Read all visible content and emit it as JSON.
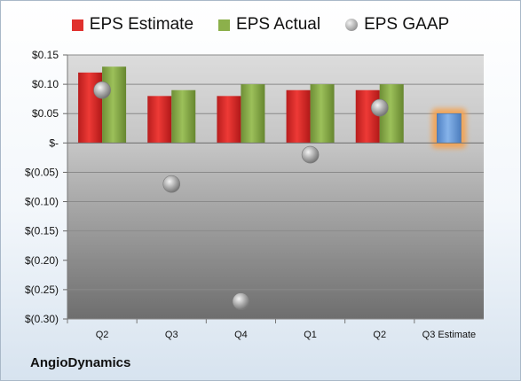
{
  "company": "AngioDynamics",
  "legend": [
    {
      "label": "EPS Estimate",
      "color": "#e0312e",
      "shape": "square"
    },
    {
      "label": "EPS Actual",
      "color": "#8cb04b",
      "shape": "square"
    },
    {
      "label": "EPS GAAP",
      "color": "#a6a6a6",
      "shape": "circle"
    }
  ],
  "chart_data": {
    "type": "bar",
    "categories": [
      "Q2",
      "Q3",
      "Q4",
      "Q1",
      "Q2",
      "Q3 Estimate"
    ],
    "series": [
      {
        "name": "EPS Estimate",
        "values": [
          0.12,
          0.08,
          0.08,
          0.09,
          0.09,
          null
        ]
      },
      {
        "name": "EPS Actual",
        "values": [
          0.13,
          0.09,
          0.1,
          0.1,
          0.1,
          null
        ]
      },
      {
        "name": "EPS GAAP",
        "values": [
          0.09,
          -0.07,
          -0.27,
          -0.02,
          0.06,
          null
        ]
      }
    ],
    "next_estimate": {
      "category": "Q3 Estimate",
      "value": 0.05,
      "color": "#6f9fdc",
      "glow": "#f7a04a"
    },
    "ylim": [
      -0.3,
      0.15
    ],
    "yticks": [
      0.15,
      0.1,
      0.05,
      0,
      -0.05,
      -0.1,
      -0.15,
      -0.2,
      -0.25,
      -0.3
    ],
    "ytick_labels": [
      "$0.15",
      "$0.10",
      "$0.05",
      "$-",
      "$(0.05)",
      "$(0.10)",
      "$(0.15)",
      "$(0.20)",
      "$(0.25)",
      "$(0.30)"
    ],
    "grid": true,
    "legend_position": "top"
  }
}
